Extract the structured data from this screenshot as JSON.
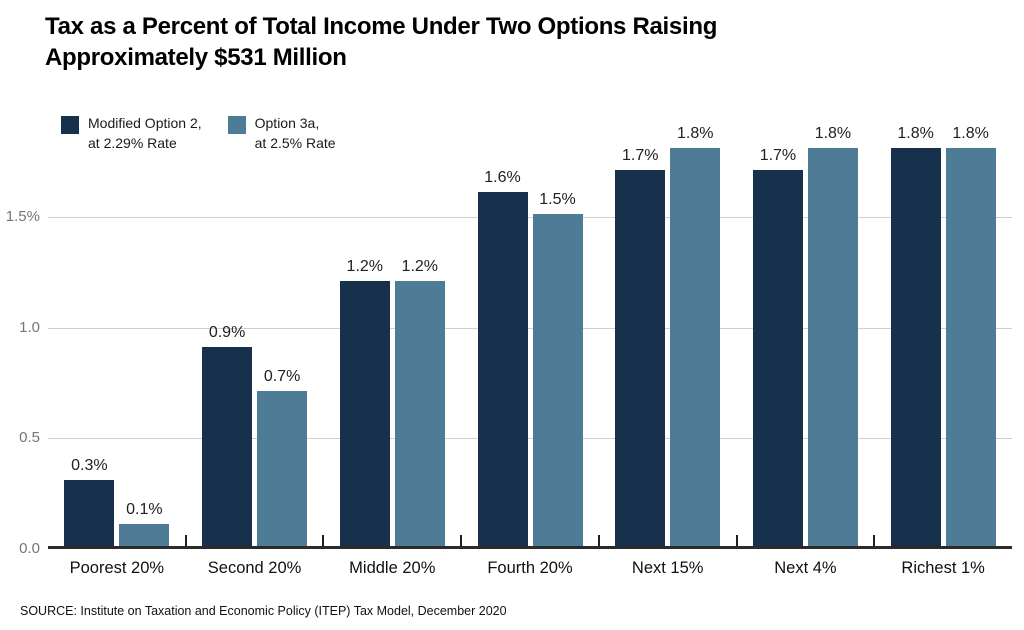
{
  "title": "Tax as a Percent of Total Income Under Two Options Raising Approximately $531 Million",
  "source": "SOURCE: Institute on Taxation and Economic Policy (ITEP) Tax Model, December 2020",
  "legend": [
    {
      "line1": "Modified Option 2,",
      "line2": "at 2.29% Rate",
      "color": "#17304C"
    },
    {
      "line1": "Option 3a,",
      "line2": "at 2.5% Rate",
      "color": "#4E7C96"
    }
  ],
  "colors": {
    "series1": "#17304C",
    "series2": "#4E7C96",
    "gridline": "#D0D0D0",
    "axis": "#2B2B2B",
    "y_tick_label": "#757575"
  },
  "chart_data": {
    "type": "bar",
    "title": "Tax as a Percent of Total Income Under Two Options Raising Approximately $531 Million",
    "xlabel": "",
    "ylabel": "",
    "value_suffix": "%",
    "grid": true,
    "legend_position": "top-left",
    "categories": [
      "Poorest 20%",
      "Second 20%",
      "Middle 20%",
      "Fourth 20%",
      "Next 15%",
      "Next 4%",
      "Richest 1%"
    ],
    "series": [
      {
        "name": "Modified Option 2, at 2.29% Rate",
        "color": "#17304C",
        "values": [
          0.3,
          0.9,
          1.2,
          1.6,
          1.7,
          1.7,
          1.8
        ],
        "labels": [
          "0.3%",
          "0.9%",
          "1.2%",
          "1.6%",
          "1.7%",
          "1.7%",
          "1.8%"
        ]
      },
      {
        "name": "Option 3a, at 2.5% Rate",
        "color": "#4E7C96",
        "values": [
          0.1,
          0.7,
          1.2,
          1.5,
          1.8,
          1.8,
          1.8
        ],
        "labels": [
          "0.1%",
          "0.7%",
          "1.2%",
          "1.5%",
          "1.8%",
          "1.8%",
          "1.8%"
        ]
      }
    ],
    "ylim": [
      0,
      1.85
    ],
    "y_ticks": [
      {
        "value": 0.0,
        "label": "0.0"
      },
      {
        "value": 0.5,
        "label": "0.5"
      },
      {
        "value": 1.0,
        "label": "1.0"
      },
      {
        "value": 1.5,
        "label": "1.5%"
      }
    ]
  }
}
